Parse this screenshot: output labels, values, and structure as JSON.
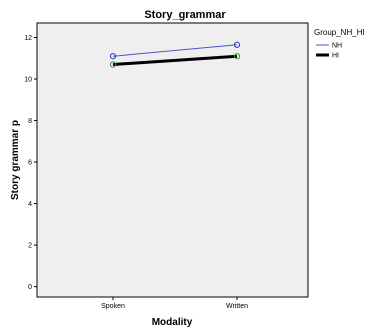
{
  "chart_data": {
    "type": "line",
    "title": "Story_grammar",
    "xlabel": "Modality",
    "ylabel": "Story grammar p",
    "categories": [
      "Spoken",
      "Written"
    ],
    "ylim": [
      -0.5,
      12.7
    ],
    "yticks": [
      0,
      2,
      4,
      6,
      8,
      10,
      12
    ],
    "grid": false,
    "legend": {
      "title": "Group_NH_HI",
      "placement": "right"
    },
    "series": [
      {
        "name": "NH",
        "values": [
          11.1,
          11.65
        ],
        "line_color": "#4b55c8",
        "marker_color": "#2a35b8",
        "line_width": 1
      },
      {
        "name": "HI",
        "values": [
          10.7,
          11.1
        ],
        "line_color": "#000000",
        "marker_color": "#2e9a36",
        "line_width": 3
      }
    ],
    "colors": {
      "plot_background": "#efefef",
      "frame": "#000000"
    }
  }
}
